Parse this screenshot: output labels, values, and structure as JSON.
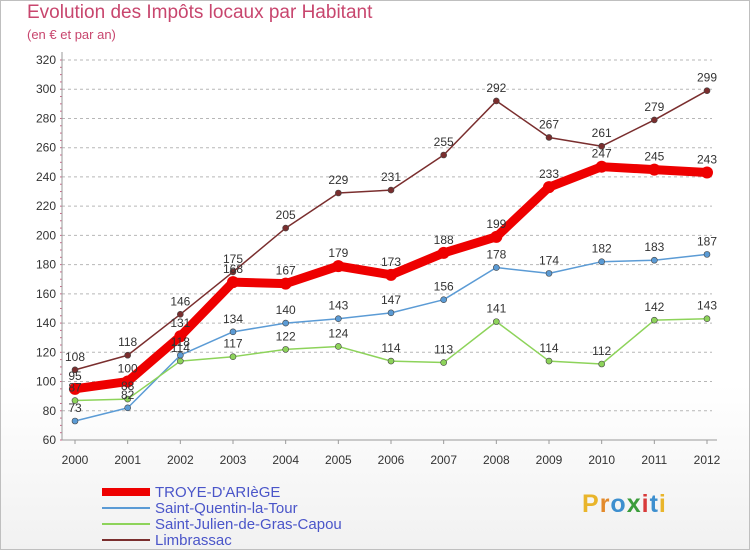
{
  "title": "Evolution des Impôts locaux par Habitant",
  "subtitle": "(en € et par an)",
  "logo": {
    "text": "Proxiti",
    "letter_colors": [
      "#e9b52b",
      "#e38a2b",
      "#3d8fcf",
      "#3b9d3b",
      "#d83a3a",
      "#3d8fcf",
      "#e9b52b"
    ]
  },
  "colors": {
    "grid": "#b7b7b7",
    "axis": "#9a9a9a",
    "title": "#c8466e",
    "legend_text": "#4a55c9"
  },
  "chart_data": {
    "type": "line",
    "x": [
      "2000",
      "2001",
      "2002",
      "2003",
      "2004",
      "2005",
      "2006",
      "2007",
      "2008",
      "2009",
      "2010",
      "2011",
      "2012"
    ],
    "ylim": [
      60,
      320
    ],
    "yticks": [
      60,
      80,
      100,
      120,
      140,
      160,
      180,
      200,
      220,
      240,
      260,
      280,
      300,
      320
    ],
    "grid": "horizontal dashed",
    "legend_position": "bottom-left",
    "series": [
      {
        "name": "TROYE-D'ARIèGE",
        "color": "#ee0000",
        "line_style": "thick",
        "values": [
          95,
          100,
          131,
          168,
          167,
          179,
          173,
          188,
          199,
          233,
          247,
          245,
          243
        ],
        "labels": [
          "95",
          "100",
          "131",
          "168",
          "167",
          "179",
          "173",
          "188",
          "199",
          "233",
          "247",
          "245",
          "243"
        ]
      },
      {
        "name": "Saint-Quentin-la-Tour",
        "color": "#5b9bd5",
        "line_style": "thin",
        "values": [
          73,
          82,
          118,
          134,
          140,
          143,
          147,
          156,
          178,
          174,
          182,
          183,
          187
        ],
        "labels": [
          "73",
          "82",
          "118",
          "134",
          "140",
          "143",
          "147",
          "156",
          "178",
          "174",
          "182",
          "183",
          "187"
        ]
      },
      {
        "name": "Saint-Julien-de-Gras-Capou",
        "color": "#8dd35a",
        "line_style": "thin",
        "values": [
          87,
          88,
          114,
          117,
          122,
          124,
          114,
          113,
          141,
          114,
          112,
          142,
          143
        ],
        "labels": [
          "87",
          "88",
          "114",
          "117",
          "122",
          "124",
          "114",
          "113",
          "141",
          "114",
          "112",
          "142",
          "143"
        ]
      },
      {
        "name": "Limbrassac",
        "color": "#7a2e2e",
        "line_style": "thin",
        "values": [
          108,
          118,
          146,
          175,
          205,
          229,
          231,
          255,
          292,
          267,
          261,
          279,
          299
        ],
        "labels": [
          "108",
          "118",
          "146",
          "175",
          "205",
          "229",
          "231",
          "255",
          "292",
          "267",
          "261",
          "279",
          "299"
        ]
      }
    ]
  }
}
